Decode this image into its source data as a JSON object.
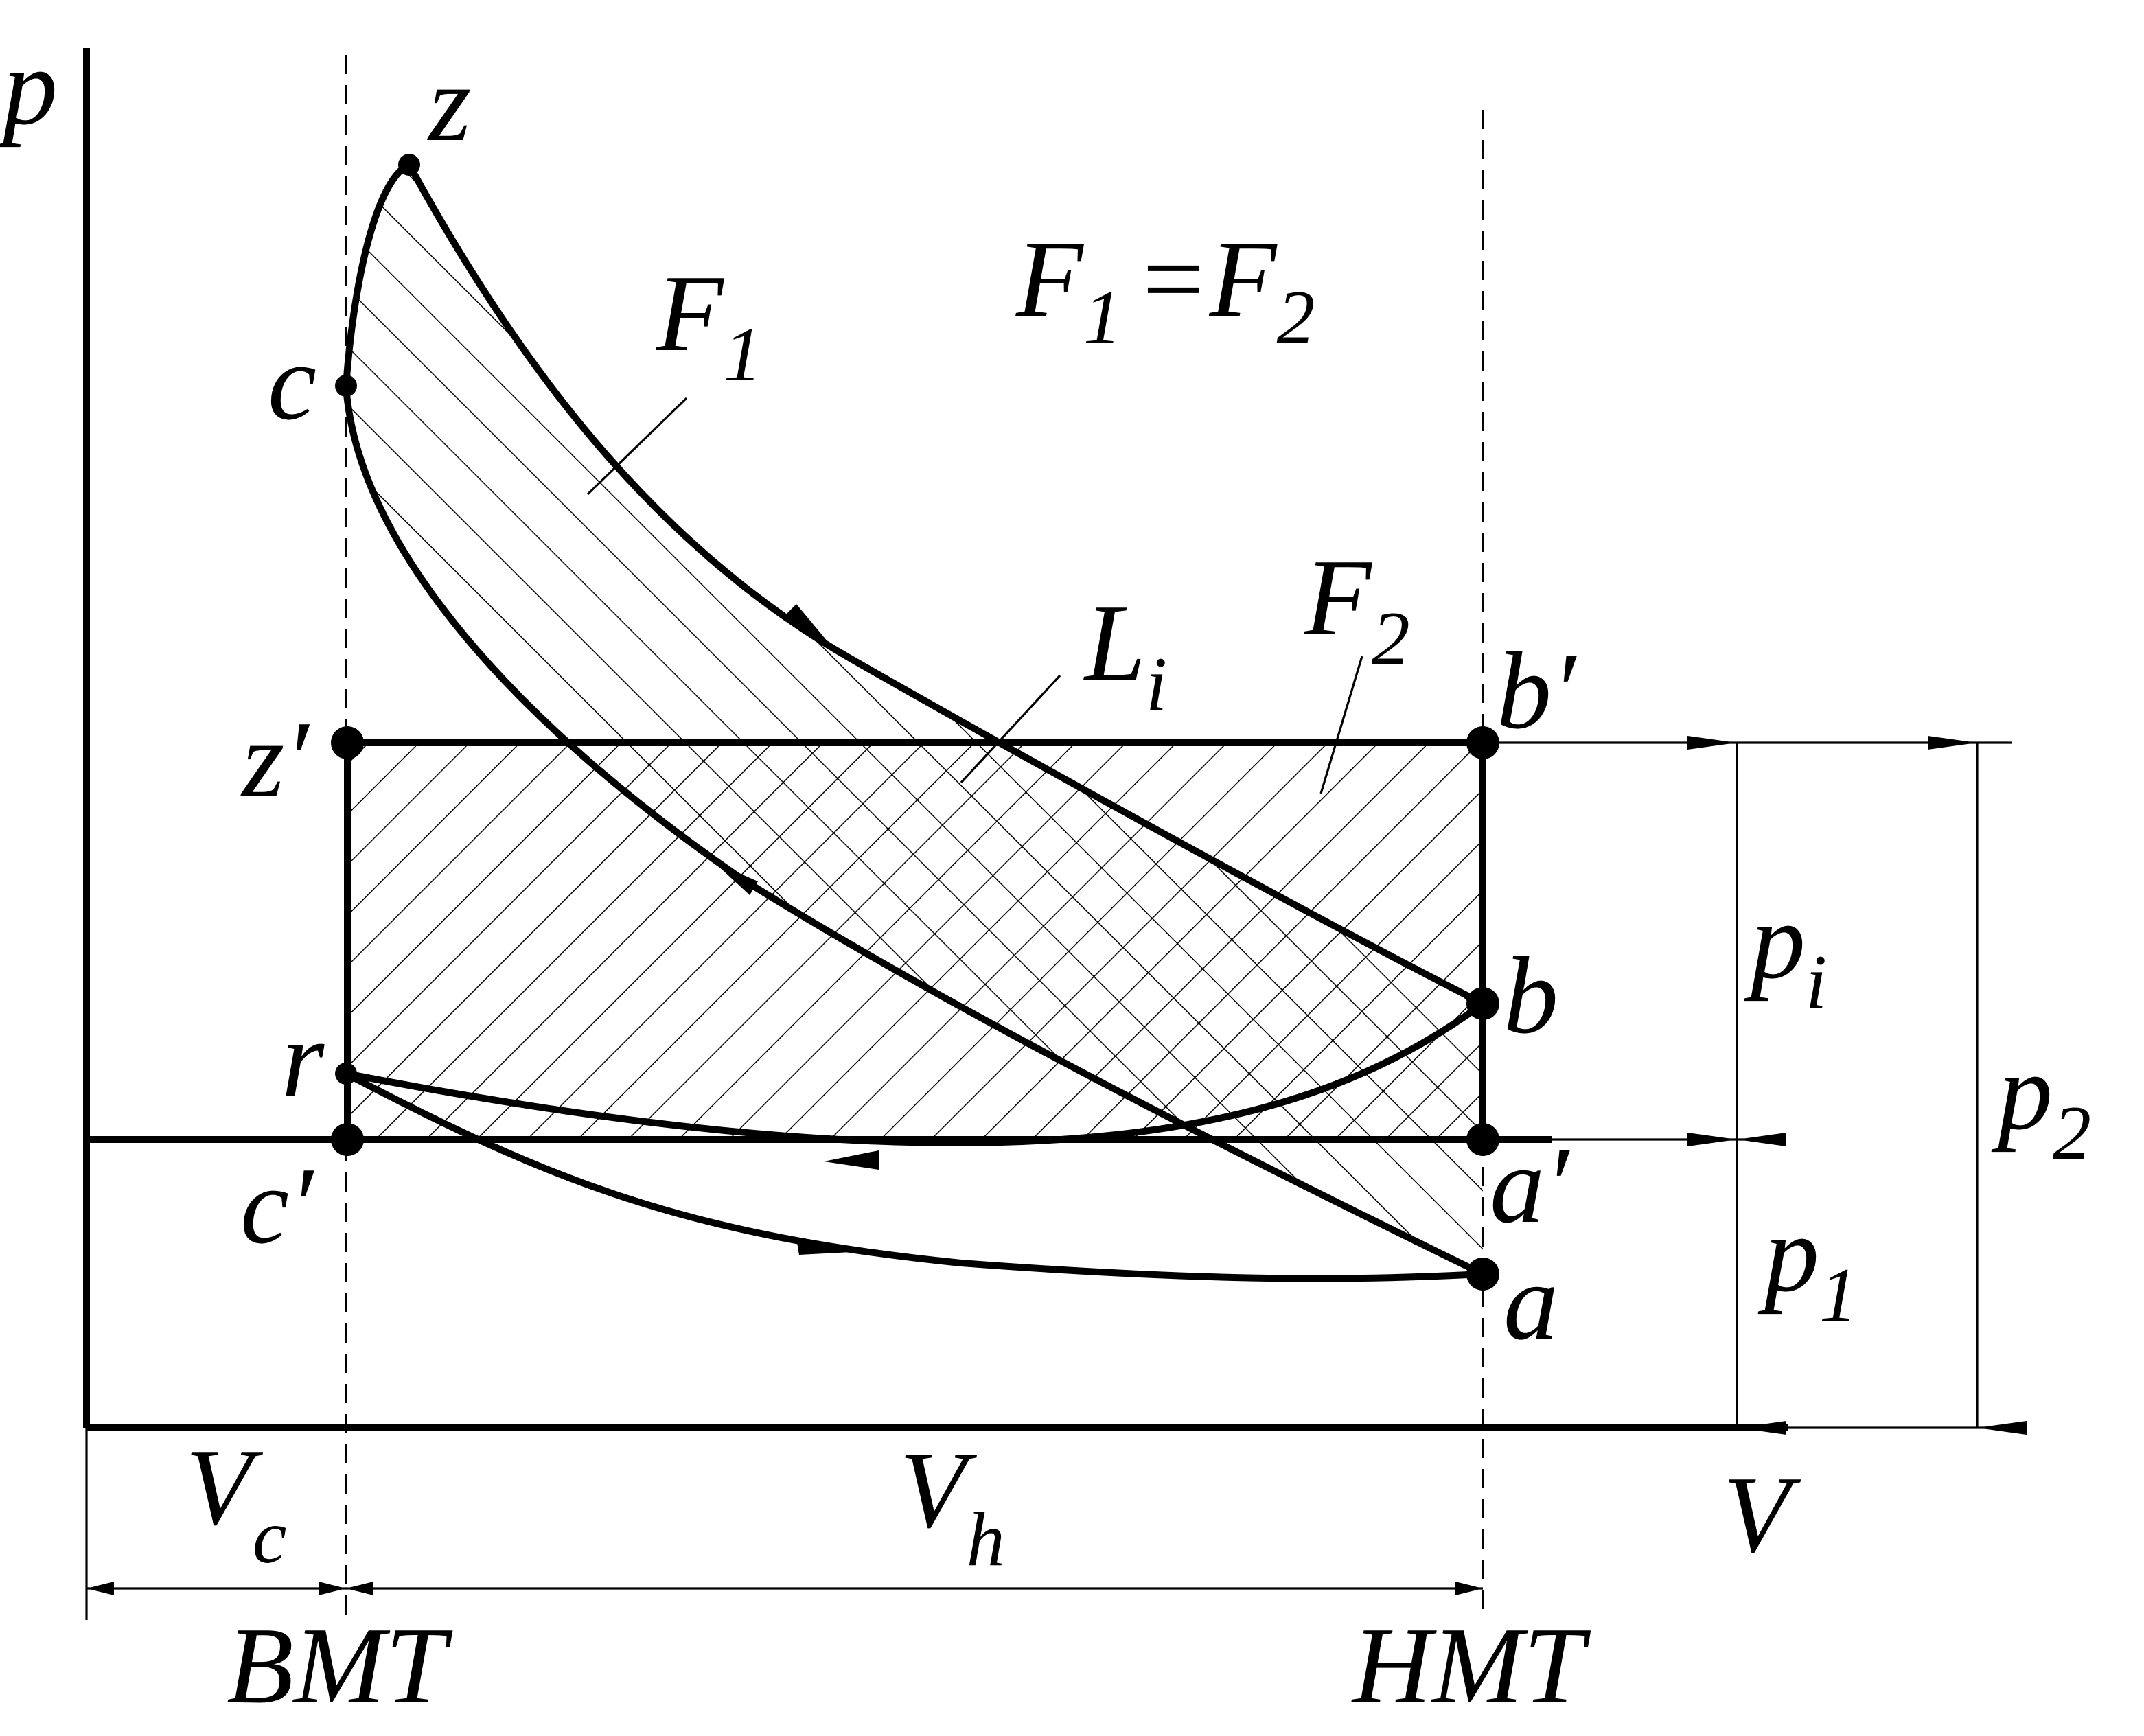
{
  "axes": {
    "y": "p",
    "x": "V"
  },
  "points": {
    "z": "z",
    "c": "c",
    "z_prime": "z′",
    "r": "r",
    "c_prime": "c′",
    "b_prime": "b′",
    "b": "b",
    "a_prime": "a′",
    "a": "a"
  },
  "areas": {
    "F1": {
      "main": "F",
      "sub": "1"
    },
    "F2": {
      "main": "F",
      "sub": "2"
    },
    "Li": {
      "main": "L",
      "sub": "i"
    }
  },
  "equation": {
    "left": {
      "main": "F",
      "sub": "1"
    },
    "op": "=",
    "right": {
      "main": "F",
      "sub": "2"
    }
  },
  "dimensions": {
    "pi": {
      "main": "p",
      "sub": "i"
    },
    "p1": {
      "main": "p",
      "sub": "1"
    },
    "p2": {
      "main": "p",
      "sub": "2"
    },
    "Vc": {
      "main": "V",
      "sub": "c"
    },
    "Vh": {
      "main": "V",
      "sub": "h"
    }
  },
  "dead_centres": {
    "top": "BMT",
    "bottom": "HMT"
  }
}
